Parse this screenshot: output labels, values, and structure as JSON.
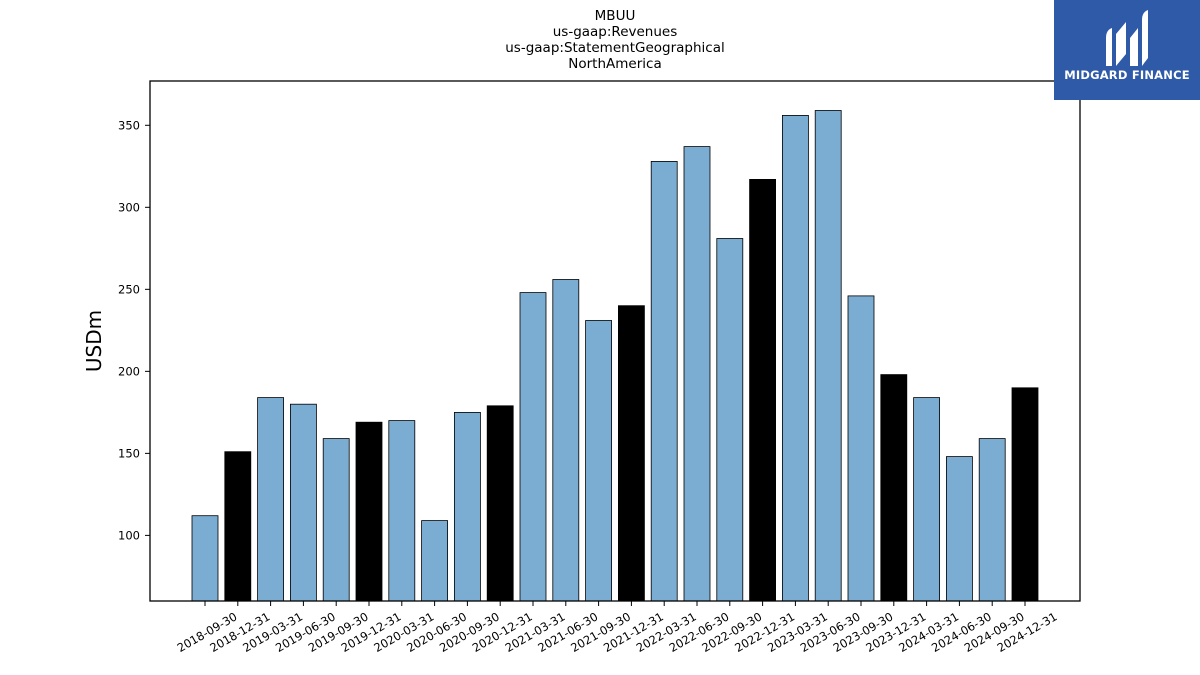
{
  "brand": {
    "name": "MIDGARD FINANCE",
    "bg_color": "#2f5aa8",
    "icon": "midgard-logo-icon"
  },
  "chart_data": {
    "type": "bar",
    "title": [
      "MBUU",
      "us-gaap:Revenues",
      "us-gaap:StatementGeographical",
      "NorthAmerica"
    ],
    "xlabel": "",
    "ylabel": "USDm",
    "ylim": [
      60,
      377
    ],
    "yticks": [
      100,
      150,
      200,
      250,
      300,
      350
    ],
    "grid": false,
    "colors": {
      "quarter": "#7bacd1",
      "year_end": "#000000"
    },
    "categories": [
      "2018-09-30",
      "2018-12-31",
      "2019-03-31",
      "2019-06-30",
      "2019-09-30",
      "2019-12-31",
      "2020-03-31",
      "2020-06-30",
      "2020-09-30",
      "2020-12-31",
      "2021-03-31",
      "2021-06-30",
      "2021-09-30",
      "2021-12-31",
      "2022-03-31",
      "2022-06-30",
      "2022-09-30",
      "2022-12-31",
      "2023-03-31",
      "2023-06-30",
      "2023-09-30",
      "2023-12-31",
      "2024-03-31",
      "2024-06-30",
      "2024-09-30",
      "2024-12-31"
    ],
    "values": [
      112,
      151,
      184,
      180,
      159,
      169,
      170,
      109,
      175,
      179,
      248,
      256,
      231,
      240,
      328,
      337,
      281,
      317,
      356,
      359,
      246,
      198,
      184,
      148,
      159,
      190
    ]
  }
}
